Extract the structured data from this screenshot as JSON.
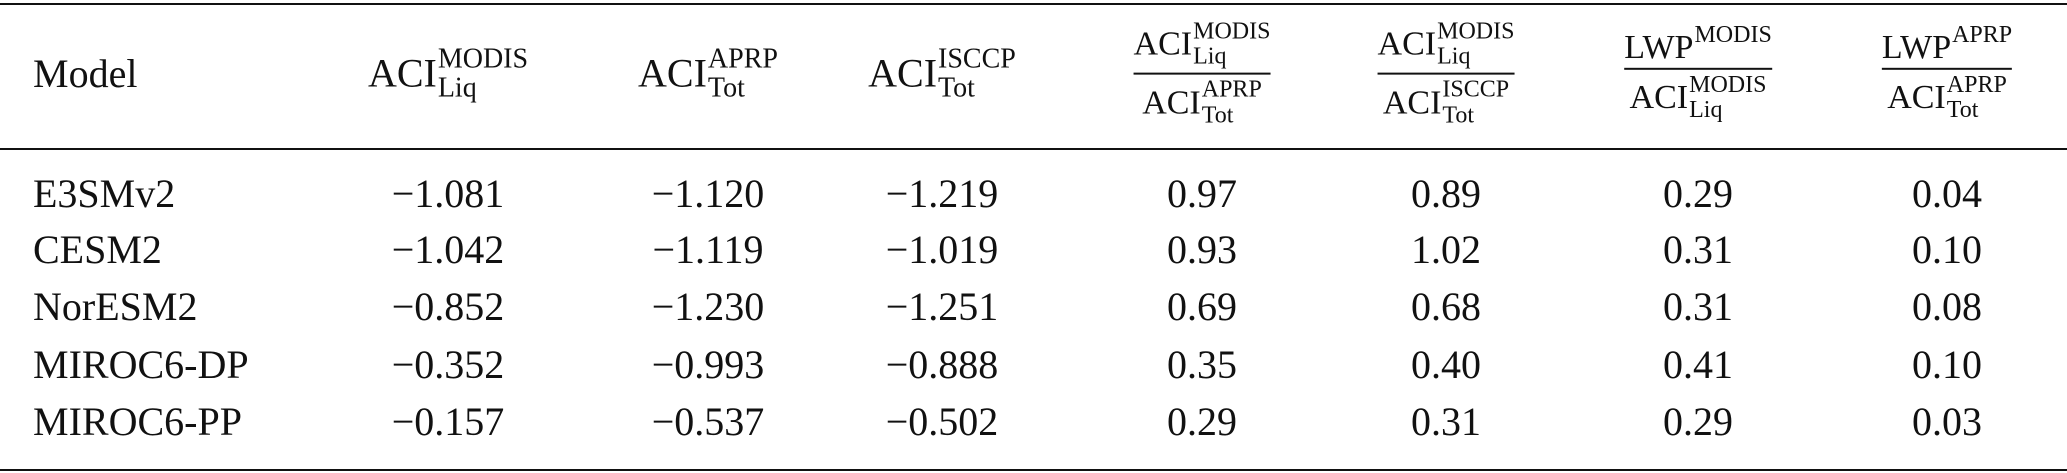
{
  "table": {
    "header": [
      "Model",
      {
        "base": "ACI",
        "sup": "MODIS",
        "sub": "Liq"
      },
      {
        "base": "ACI",
        "sup": "APRP",
        "sub": "Tot"
      },
      {
        "base": "ACI",
        "sup": "ISCCP",
        "sub": "Tot"
      },
      {
        "num": {
          "base": "ACI",
          "sup": "MODIS",
          "sub": "Liq"
        },
        "den": {
          "base": "ACI",
          "sup": "APRP",
          "sub": "Tot"
        }
      },
      {
        "num": {
          "base": "ACI",
          "sup": "MODIS",
          "sub": "Liq"
        },
        "den": {
          "base": "ACI",
          "sup": "ISCCP",
          "sub": "Tot"
        }
      },
      {
        "num": {
          "base": "LWP",
          "sup": "MODIS"
        },
        "den": {
          "base": "ACI",
          "sup": "MODIS",
          "sub": "Liq"
        }
      },
      {
        "num": {
          "base": "LWP",
          "sup": "APRP"
        },
        "den": {
          "base": "ACI",
          "sup": "APRP",
          "sub": "Tot"
        }
      }
    ],
    "rows": [
      [
        "E3SMv2",
        "−1.081",
        "−1.120",
        "−1.219",
        "0.97",
        "0.89",
        "0.29",
        "0.04"
      ],
      [
        "CESM2",
        "−1.042",
        "−1.119",
        "−1.019",
        "0.93",
        "1.02",
        "0.31",
        "0.10"
      ],
      [
        "NorESM2",
        "−0.852",
        "−1.230",
        "−1.251",
        "0.69",
        "0.68",
        "0.31",
        "0.08"
      ],
      [
        "MIROC6-DP",
        "−0.352",
        "−0.993",
        "−0.888",
        "0.35",
        "0.40",
        "0.41",
        "0.10"
      ],
      [
        "MIROC6-PP",
        "−0.157",
        "−0.537",
        "−0.502",
        "0.29",
        "0.31",
        "0.29",
        "0.03"
      ]
    ]
  }
}
